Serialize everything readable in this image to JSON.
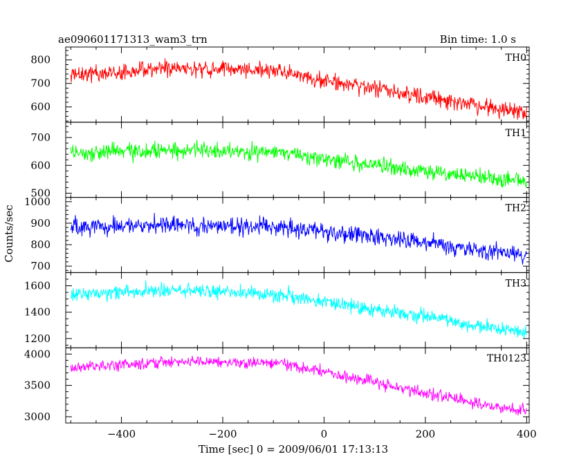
{
  "chart_data": {
    "type": "line",
    "title": "ae090601171313_wam3_trn",
    "subtitle": "Bin time: 1.0 s",
    "xlabel": "Time [sec] 0 = 2009/06/01 17:13:13",
    "ylabel": "Counts/sec",
    "xlim": [
      -510,
      405
    ],
    "x_ticks": [
      -400,
      -200,
      0,
      200,
      400
    ],
    "bin_seconds": 1.0,
    "grid": false,
    "panels": [
      {
        "name": "TH0",
        "color": "#ff0000",
        "ylim": [
          535,
          855
        ],
        "y_ticks": [
          600,
          700,
          800
        ],
        "noise_amplitude": 35,
        "trend": {
          "x": [
            -500,
            -300,
            -100,
            0,
            100,
            200,
            300,
            400
          ],
          "y": [
            735,
            765,
            755,
            710,
            680,
            640,
            610,
            575
          ]
        }
      },
      {
        "name": "TH1",
        "color": "#00ff00",
        "ylim": [
          485,
          755
        ],
        "y_ticks": [
          500,
          600,
          700
        ],
        "noise_amplitude": 30,
        "trend": {
          "x": [
            -500,
            -300,
            -100,
            0,
            100,
            200,
            300,
            400
          ],
          "y": [
            645,
            655,
            645,
            625,
            600,
            580,
            560,
            540
          ]
        }
      },
      {
        "name": "TH2",
        "color": "#0000ff",
        "ylim": [
          670,
          1020
        ],
        "y_ticks": [
          700,
          800,
          900,
          1000
        ],
        "noise_amplitude": 40,
        "trend": {
          "x": [
            -500,
            -300,
            -100,
            0,
            100,
            200,
            300,
            400
          ],
          "y": [
            880,
            890,
            885,
            865,
            840,
            810,
            780,
            745
          ]
        }
      },
      {
        "name": "TH3",
        "color": "#00ffff",
        "ylim": [
          1130,
          1700
        ],
        "y_ticks": [
          1200,
          1400,
          1600
        ],
        "noise_amplitude": 55,
        "trend": {
          "x": [
            -500,
            -300,
            -100,
            0,
            100,
            200,
            300,
            400
          ],
          "y": [
            1530,
            1570,
            1540,
            1480,
            1420,
            1370,
            1300,
            1240
          ]
        }
      },
      {
        "name": "TH0123",
        "color": "#ff00ff",
        "ylim": [
          2900,
          4100
        ],
        "y_ticks": [
          3000,
          3500,
          4000
        ],
        "noise_amplitude": 90,
        "trend": {
          "x": [
            -500,
            -300,
            -100,
            0,
            100,
            200,
            300,
            400
          ],
          "y": [
            3780,
            3880,
            3860,
            3720,
            3550,
            3380,
            3220,
            3080
          ]
        }
      }
    ]
  }
}
